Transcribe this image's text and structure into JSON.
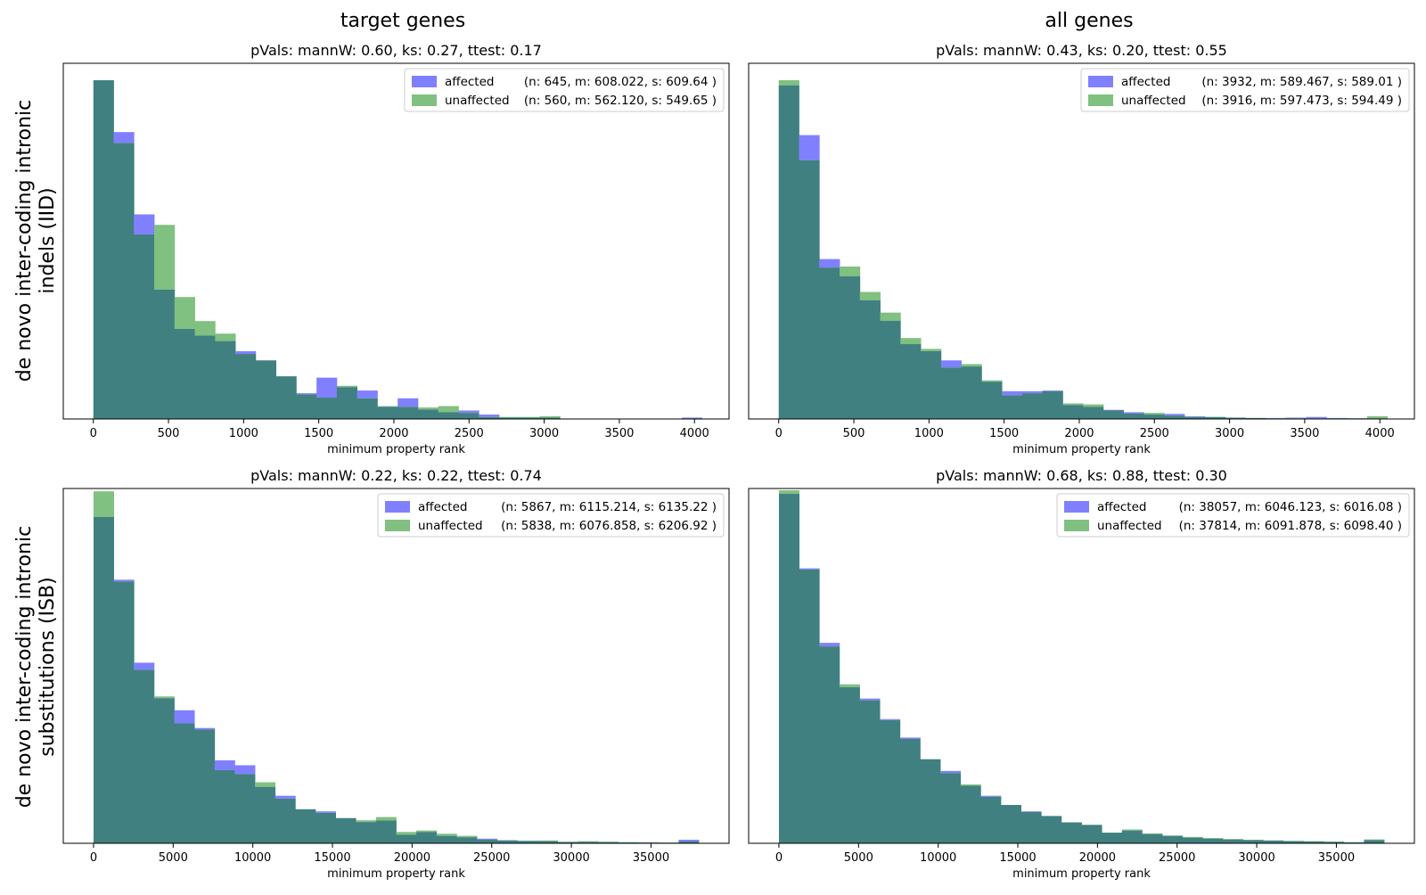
{
  "figure": {
    "column_titles": [
      "target genes",
      "all genes"
    ],
    "row_labels": [
      [
        "de novo inter-coding intronic",
        "indels (IID)"
      ],
      [
        "de novo inter-coding intronic",
        "substitutions (ISB)"
      ]
    ]
  },
  "colors": {
    "affected": "#8080ff",
    "unaffected": "#80c080",
    "overlap": "#408080"
  },
  "chart_data": [
    {
      "type": "histogram",
      "title": "pVals: mannW: 0.60, ks: 0.27, ttest: 0.17",
      "xlabel": "minimum property rank",
      "ylabel": "",
      "xlim": [
        -200,
        4230
      ],
      "ylim": [
        0,
        1.05
      ],
      "xticks": [
        0,
        500,
        1000,
        1500,
        2000,
        2500,
        3000,
        3500,
        4000
      ],
      "bin_edges": [
        0,
        135,
        270,
        405,
        540,
        675,
        810,
        945,
        1080,
        1215,
        1350,
        1485,
        1620,
        1755,
        1890,
        2025,
        2160,
        2295,
        2430,
        2565,
        2700,
        2835,
        2970,
        3105,
        3240,
        3375,
        3510,
        3645,
        3780,
        3915,
        4050
      ],
      "legend": {
        "position": "top-right",
        "entries": [
          {
            "label": "affected",
            "stats": "(n: 645, m: 608.022, s: 609.64 )"
          },
          {
            "label": "unaffected",
            "stats": "(n: 560, m: 562.120, s: 549.65 )"
          }
        ]
      },
      "series": [
        {
          "name": "affected",
          "values": [
            1.0,
            0.847,
            0.604,
            0.382,
            0.266,
            0.246,
            0.23,
            0.2,
            0.173,
            0.126,
            0.076,
            0.122,
            0.094,
            0.084,
            0.036,
            0.061,
            0.028,
            0.02,
            0.025,
            0.013,
            0.004,
            0.004,
            0.004,
            0,
            0,
            0,
            0,
            0,
            0,
            0.004
          ]
        },
        {
          "name": "unaffected",
          "values": [
            1.0,
            0.815,
            0.545,
            0.573,
            0.36,
            0.289,
            0.252,
            0.192,
            0.173,
            0.126,
            0.073,
            0.063,
            0.098,
            0.061,
            0.038,
            0.036,
            0.034,
            0.038,
            0.018,
            0.006,
            0.006,
            0.006,
            0.008,
            0,
            0,
            0,
            0,
            0,
            0,
            0
          ]
        }
      ]
    },
    {
      "type": "histogram",
      "title": "pVals: mannW: 0.43, ks: 0.20, ttest: 0.55",
      "xlabel": "minimum property rank",
      "ylabel": "",
      "xlim": [
        -200,
        4230
      ],
      "ylim": [
        0,
        1.05
      ],
      "xticks": [
        0,
        500,
        1000,
        1500,
        2000,
        2500,
        3000,
        3500,
        4000
      ],
      "bin_edges": [
        0,
        135,
        270,
        405,
        540,
        675,
        810,
        945,
        1080,
        1215,
        1350,
        1485,
        1620,
        1755,
        1890,
        2025,
        2160,
        2295,
        2430,
        2565,
        2700,
        2835,
        2970,
        3105,
        3240,
        3375,
        3510,
        3645,
        3780,
        3915,
        4050
      ],
      "legend": {
        "position": "top-right",
        "entries": [
          {
            "label": "affected",
            "stats": "(n: 3932, m: 589.467, s: 589.01 )"
          },
          {
            "label": "unaffected",
            "stats": "(n: 3916, m: 597.473, s: 594.49 )"
          }
        ]
      },
      "series": [
        {
          "name": "affected",
          "values": [
            0.985,
            0.838,
            0.472,
            0.421,
            0.35,
            0.29,
            0.221,
            0.2,
            0.173,
            0.155,
            0.11,
            0.082,
            0.082,
            0.084,
            0.041,
            0.036,
            0.027,
            0.02,
            0.013,
            0.015,
            0.008,
            0.006,
            0.004,
            0.003,
            0.003,
            0.004,
            0.006,
            0.003,
            0.002,
            0.002
          ]
        },
        {
          "name": "unaffected",
          "values": [
            1.0,
            0.764,
            0.447,
            0.45,
            0.375,
            0.314,
            0.239,
            0.207,
            0.152,
            0.162,
            0.114,
            0.07,
            0.076,
            0.082,
            0.046,
            0.043,
            0.025,
            0.016,
            0.018,
            0.01,
            0.006,
            0.006,
            0.004,
            0.003,
            0.002,
            0.002,
            0.002,
            0.002,
            0.002,
            0.008
          ]
        }
      ]
    },
    {
      "type": "histogram",
      "title": "pVals: mannW: 0.22, ks: 0.22, ttest: 0.74",
      "xlabel": "minimum property rank",
      "ylabel": "",
      "xlim": [
        -1900,
        39900
      ],
      "ylim": [
        0,
        1.0
      ],
      "xticks": [
        0,
        5000,
        10000,
        15000,
        20000,
        25000,
        30000,
        35000
      ],
      "bin_edges": [
        0,
        1267,
        2533,
        3800,
        5067,
        6333,
        7600,
        8867,
        10133,
        11400,
        12667,
        13933,
        15200,
        16467,
        17733,
        19000,
        20267,
        21533,
        22800,
        24067,
        25333,
        26600,
        27867,
        29133,
        30400,
        31667,
        32933,
        34200,
        35467,
        36733,
        38000
      ],
      "legend": {
        "position": "top-right",
        "entries": [
          {
            "label": "affected",
            "stats": "(n: 5867, m: 6115.214, s: 6135.22 )"
          },
          {
            "label": "unaffected",
            "stats": "(n: 5838, m: 6076.858, s: 6206.92 )"
          }
        ]
      },
      "series": [
        {
          "name": "affected",
          "values": [
            0.92,
            0.743,
            0.509,
            0.409,
            0.375,
            0.325,
            0.234,
            0.22,
            0.159,
            0.134,
            0.096,
            0.09,
            0.071,
            0.06,
            0.064,
            0.024,
            0.032,
            0.021,
            0.017,
            0.013,
            0.009,
            0.007,
            0.006,
            0.004,
            0.004,
            0.003,
            0.003,
            0.003,
            0.002,
            0.01
          ]
        },
        {
          "name": "unaffected",
          "values": [
            0.992,
            0.738,
            0.489,
            0.414,
            0.338,
            0.321,
            0.206,
            0.195,
            0.172,
            0.126,
            0.096,
            0.086,
            0.071,
            0.065,
            0.074,
            0.032,
            0.036,
            0.027,
            0.021,
            0.01,
            0.008,
            0.007,
            0.008,
            0.004,
            0.006,
            0.005,
            0.003,
            0.002,
            0.002,
            0.005
          ]
        }
      ]
    },
    {
      "type": "histogram",
      "title": "pVals: mannW: 0.68, ks: 0.88, ttest: 0.30",
      "xlabel": "minimum property rank",
      "ylabel": "",
      "xlim": [
        -1900,
        39900
      ],
      "ylim": [
        0,
        1.0
      ],
      "xticks": [
        0,
        5000,
        10000,
        15000,
        20000,
        25000,
        30000,
        35000
      ],
      "bin_edges": [
        0,
        1267,
        2533,
        3800,
        5067,
        6333,
        7600,
        8867,
        10133,
        11400,
        12667,
        13933,
        15200,
        16467,
        17733,
        19000,
        20267,
        21533,
        22800,
        24067,
        25333,
        26600,
        27867,
        29133,
        30400,
        31667,
        32933,
        34200,
        35467,
        36733,
        38000
      ],
      "legend": {
        "position": "top-right",
        "entries": [
          {
            "label": "affected",
            "stats": "(n: 38057, m: 6046.123, s: 6016.08 )"
          },
          {
            "label": "unaffected",
            "stats": "(n: 37814, m: 6091.878, s: 6098.40 )"
          }
        ]
      },
      "series": [
        {
          "name": "affected",
          "values": [
            0.985,
            0.775,
            0.565,
            0.44,
            0.408,
            0.35,
            0.298,
            0.237,
            0.204,
            0.162,
            0.134,
            0.108,
            0.09,
            0.077,
            0.059,
            0.052,
            0.03,
            0.036,
            0.026,
            0.021,
            0.016,
            0.013,
            0.011,
            0.009,
            0.008,
            0.006,
            0.005,
            0.004,
            0.003,
            0.009
          ]
        },
        {
          "name": "unaffected",
          "values": [
            0.995,
            0.772,
            0.555,
            0.448,
            0.403,
            0.347,
            0.294,
            0.237,
            0.198,
            0.166,
            0.131,
            0.108,
            0.088,
            0.077,
            0.059,
            0.052,
            0.03,
            0.039,
            0.028,
            0.022,
            0.018,
            0.015,
            0.012,
            0.01,
            0.008,
            0.007,
            0.006,
            0.005,
            0.003,
            0.011
          ]
        }
      ]
    }
  ]
}
